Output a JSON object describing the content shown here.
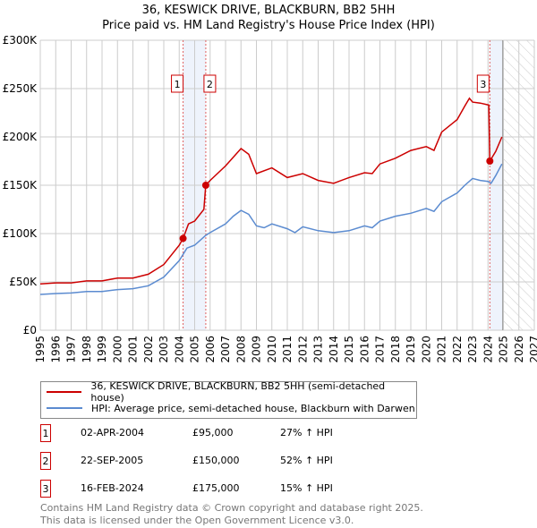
{
  "title": "36, KESWICK DRIVE, BLACKBURN, BB2 5HH",
  "subtitle": "Price paid vs. HM Land Registry's House Price Index (HPI)",
  "chart_data": {
    "type": "line",
    "xlim": [
      1995,
      2027
    ],
    "ylim": [
      0,
      300000
    ],
    "yticks": [
      0,
      50000,
      100000,
      150000,
      200000,
      250000,
      300000
    ],
    "ytick_labels": [
      "£0",
      "£50K",
      "£100K",
      "£150K",
      "£200K",
      "£250K",
      "£300K"
    ],
    "xticks": [
      1995,
      1996,
      1997,
      1998,
      1999,
      2000,
      2001,
      2002,
      2003,
      2004,
      2005,
      2006,
      2007,
      2008,
      2009,
      2010,
      2011,
      2012,
      2013,
      2014,
      2015,
      2016,
      2017,
      2018,
      2019,
      2020,
      2021,
      2022,
      2023,
      2024,
      2025,
      2026,
      2027
    ],
    "series": [
      {
        "name": "36, KESWICK DRIVE, BLACKBURN, BB2 5HH (semi-detached house)",
        "color": "#cc0000",
        "x": [
          1995,
          1996,
          1997,
          1998,
          1999,
          2000,
          2001,
          2002,
          2003,
          2004,
          2004.25,
          2004.6,
          2005,
          2005.6,
          2005.72,
          2006,
          2007,
          2008,
          2008.5,
          2009,
          2010,
          2011,
          2012,
          2013,
          2014,
          2015,
          2016,
          2016.5,
          2017,
          2018,
          2019,
          2020,
          2020.5,
          2021,
          2022,
          2022.5,
          2022.8,
          2023,
          2023.5,
          2024.05,
          2024.12,
          2024.5,
          2024.9
        ],
        "y": [
          48000,
          49000,
          49000,
          51000,
          51000,
          54000,
          54000,
          58000,
          68000,
          88000,
          95000,
          110000,
          113000,
          125000,
          150000,
          155000,
          170000,
          188000,
          182000,
          162000,
          168000,
          158000,
          162000,
          155000,
          152000,
          158000,
          163000,
          162000,
          172000,
          178000,
          186000,
          190000,
          186000,
          205000,
          218000,
          232000,
          240000,
          236000,
          235000,
          233000,
          175000,
          185000,
          200000
        ]
      },
      {
        "name": "HPI: Average price, semi-detached house, Blackburn with Darwen",
        "color": "#5b8bd0",
        "x": [
          1995,
          1996,
          1997,
          1998,
          1999,
          2000,
          2001,
          2002,
          2003,
          2004,
          2004.5,
          2005,
          2005.7,
          2006,
          2007,
          2007.5,
          2008,
          2008.5,
          2009,
          2009.5,
          2010,
          2011,
          2011.5,
          2012,
          2013,
          2014,
          2015,
          2016,
          2016.5,
          2017,
          2018,
          2019,
          2020,
          2020.5,
          2021,
          2022,
          2022.5,
          2023,
          2023.5,
          2024,
          2024.2,
          2024.5,
          2024.9
        ],
        "y": [
          37000,
          38000,
          38500,
          40000,
          40000,
          42000,
          43000,
          46000,
          55000,
          72000,
          85000,
          88000,
          98000,
          101000,
          110000,
          118000,
          124000,
          120000,
          108000,
          106000,
          110000,
          105000,
          101000,
          107000,
          103000,
          101000,
          103000,
          108000,
          106000,
          113000,
          118000,
          121000,
          126000,
          123000,
          133000,
          142000,
          150000,
          157000,
          155000,
          154000,
          152000,
          160000,
          172000
        ]
      }
    ],
    "sales": [
      {
        "label": "1",
        "x": 2004.25,
        "y": 95000,
        "date": "02-APR-2004",
        "price": "£95,000",
        "hpi": "27% ↑ HPI"
      },
      {
        "label": "2",
        "x": 2005.72,
        "y": 150000,
        "date": "22-SEP-2005",
        "price": "£150,000",
        "hpi": "52% ↑ HPI"
      },
      {
        "label": "3",
        "x": 2024.12,
        "y": 175000,
        "date": "16-FEB-2024",
        "price": "£175,000",
        "hpi": "15% ↑ HPI"
      }
    ],
    "shaded_ranges": [
      [
        2004.25,
        2005.72
      ],
      [
        2024.12,
        2024.95
      ]
    ],
    "forecast_hatch": [
      2024.95,
      2027
    ]
  },
  "footer": [
    "Contains HM Land Registry data © Crown copyright and database right 2025.",
    "This data is licensed under the Open Government Licence v3.0."
  ]
}
